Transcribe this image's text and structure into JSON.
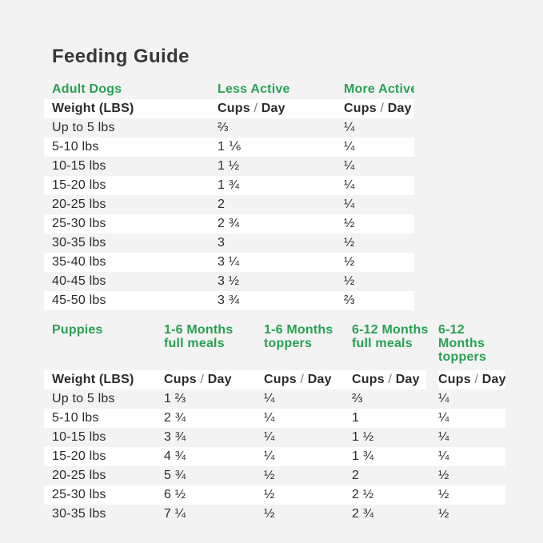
{
  "title": "Feeding Guide",
  "labels": {
    "weight": "Weight (LBS)",
    "cups": "Cups",
    "slash": "/",
    "day": "Day"
  },
  "colors": {
    "accent_green": "#2aa052",
    "text": "#2b2b2b",
    "background": "#f3f3f3",
    "row_stripe": "#ffffff"
  },
  "adult": {
    "section_label": "Adult Dogs",
    "columns": {
      "less": "Less Active",
      "more": "More Active"
    },
    "rows": [
      {
        "weight": "Up to 5 lbs",
        "less_active": "⅔",
        "more_active": "¼"
      },
      {
        "weight": "5-10 lbs",
        "less_active": "1 ⅙",
        "more_active": "¼"
      },
      {
        "weight": "10-15 lbs",
        "less_active": "1 ½",
        "more_active": "¼"
      },
      {
        "weight": "15-20 lbs",
        "less_active": "1 ¾",
        "more_active": "¼"
      },
      {
        "weight": "20-25 lbs",
        "less_active": "2",
        "more_active": "¼"
      },
      {
        "weight": "25-30 lbs",
        "less_active": "2 ¾",
        "more_active": "½"
      },
      {
        "weight": "30-35 lbs",
        "less_active": "3",
        "more_active": "½"
      },
      {
        "weight": "35-40 lbs",
        "less_active": "3 ¼",
        "more_active": "½"
      },
      {
        "weight": "40-45 lbs",
        "less_active": "3 ½",
        "more_active": "½"
      },
      {
        "weight": "45-50 lbs",
        "less_active": "3 ¾",
        "more_active": "⅔"
      }
    ]
  },
  "puppies": {
    "section_label": "Puppies",
    "columns": [
      {
        "line1": "1-6 Months",
        "line2": "full meals"
      },
      {
        "line1": "1-6 Months",
        "line2": "toppers"
      },
      {
        "line1": "6-12 Months",
        "line2": "full meals"
      },
      {
        "line1": "6-12 Months",
        "line2": "toppers"
      }
    ],
    "rows": [
      {
        "weight": "Up to 5 lbs",
        "values": [
          "1 ⅔",
          "¼",
          "⅔",
          "¼"
        ]
      },
      {
        "weight": "5-10 lbs",
        "values": [
          "2 ¾",
          "¼",
          "1",
          "¼"
        ]
      },
      {
        "weight": "10-15 lbs",
        "values": [
          "3 ¾",
          "¼",
          "1 ½",
          "¼"
        ]
      },
      {
        "weight": "15-20 lbs",
        "values": [
          "4 ¾",
          "¼",
          "1 ¾",
          "¼"
        ]
      },
      {
        "weight": "20-25 lbs",
        "values": [
          "5 ¾",
          "½",
          "2",
          "½"
        ]
      },
      {
        "weight": "25-30 lbs",
        "values": [
          "6 ½",
          "½",
          "2 ½",
          "½"
        ]
      },
      {
        "weight": "30-35 lbs",
        "values": [
          "7 ¼",
          "½",
          "2 ¾",
          "½"
        ]
      }
    ]
  }
}
